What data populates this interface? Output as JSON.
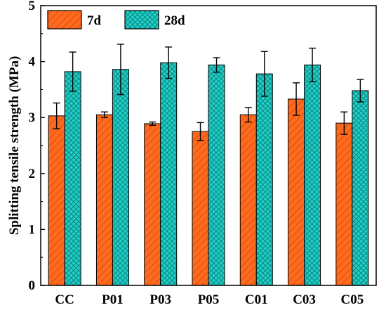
{
  "chart_data": {
    "type": "bar",
    "title": "",
    "xlabel": "",
    "ylabel": "Splitting tensile strength (MPa)",
    "categories": [
      "CC",
      "P01",
      "P03",
      "P05",
      "C01",
      "C03",
      "C05"
    ],
    "ylim": [
      0,
      5
    ],
    "yticks": [
      "0",
      "1",
      "2",
      "3",
      "4",
      "5"
    ],
    "grid": false,
    "legend_position": "top-left",
    "series": [
      {
        "name": "7d",
        "color": "#FF6A1E",
        "pattern": "diagonal-hatch",
        "values": [
          3.03,
          3.05,
          2.89,
          2.75,
          3.05,
          3.33,
          2.9
        ],
        "errors": [
          0.23,
          0.05,
          0.03,
          0.16,
          0.13,
          0.29,
          0.2
        ]
      },
      {
        "name": "28d",
        "color": "#1ECFC8",
        "pattern": "crosshatch",
        "values": [
          3.82,
          3.86,
          3.98,
          3.94,
          3.78,
          3.94,
          3.48
        ],
        "errors": [
          0.35,
          0.45,
          0.28,
          0.13,
          0.4,
          0.3,
          0.2
        ]
      }
    ]
  }
}
